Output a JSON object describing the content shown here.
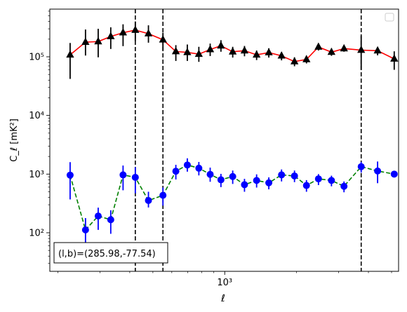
{
  "chart_data": {
    "type": "scatter",
    "xscale": "log",
    "yscale": "log",
    "xlim": [
      185,
      5350
    ],
    "ylim": [
      22,
      650000
    ],
    "xlabel": "ℓ",
    "ylabel": "C_ℓ  [mK²]",
    "xtick_major": [
      1000
    ],
    "xtick_major_labels": [
      "10³"
    ],
    "ytick_major": [
      100,
      1000,
      10000,
      100000
    ],
    "ytick_major_labels": [
      "10²",
      "10³",
      "10⁴",
      "10⁵"
    ],
    "legend": {
      "position": "top-right",
      "entries": []
    },
    "annotation": "(l,b)=(285.98,-77.54)",
    "vlines": [
      422,
      551,
      3730
    ],
    "series": [
      {
        "marker": "triangle",
        "color": "#000000",
        "line_color": "#ff0000",
        "line_style": "solid",
        "x": [
          225,
          261,
          295,
          333,
          375,
          422,
          479,
          551,
          624,
          697,
          779,
          869,
          964,
          1080,
          1210,
          1360,
          1530,
          1730,
          1960,
          2200,
          2470,
          2800,
          3160,
          3730,
          4370,
          5130
        ],
        "y": [
          108000,
          178000,
          182000,
          222000,
          258000,
          285000,
          248000,
          195000,
          123000,
          119000,
          111000,
          133000,
          154000,
          122000,
          127000,
          108000,
          118000,
          104000,
          83000,
          90000,
          147000,
          120000,
          138000,
          130000,
          127000,
          92000
        ],
        "yerr_low": [
          42000,
          105000,
          98000,
          136000,
          152000,
          185000,
          174000,
          128000,
          85000,
          85000,
          82000,
          103000,
          122000,
          97000,
          102000,
          88000,
          97000,
          87000,
          69000,
          77000,
          128000,
          104000,
          122000,
          60000,
          106000,
          60000
        ],
        "yerr_high": [
          172000,
          292000,
          300000,
          318000,
          358000,
          400000,
          344000,
          258000,
          158000,
          162000,
          148000,
          168000,
          192000,
          148000,
          153000,
          128000,
          140000,
          120000,
          98000,
          103000,
          168000,
          138000,
          154000,
          228000,
          146000,
          124000
        ]
      },
      {
        "marker": "circle",
        "color": "#0000ff",
        "line_color": "#008000",
        "line_style": "dashed",
        "x": [
          225,
          261,
          295,
          333,
          375,
          422,
          479,
          551,
          624,
          697,
          779,
          869,
          964,
          1080,
          1210,
          1360,
          1530,
          1730,
          1960,
          2200,
          2470,
          2800,
          3160,
          3730,
          4370,
          5130
        ],
        "y": [
          960,
          112,
          193,
          167,
          970,
          880,
          355,
          435,
          1120,
          1430,
          1260,
          990,
          800,
          910,
          660,
          780,
          710,
          970,
          930,
          640,
          830,
          780,
          620,
          1340,
          1130,
          1000
        ],
        "yerr_low": [
          370,
          58,
          112,
          96,
          530,
          470,
          270,
          290,
          810,
          1100,
          950,
          740,
          600,
          680,
          500,
          590,
          550,
          750,
          730,
          500,
          650,
          620,
          490,
          1060,
          700,
          1000
        ],
        "yerr_high": [
          1600,
          178,
          268,
          242,
          1400,
          1310,
          500,
          590,
          1440,
          1860,
          1610,
          1290,
          1010,
          1150,
          830,
          990,
          880,
          1200,
          1150,
          790,
          1000,
          940,
          750,
          1620,
          1640,
          1000
        ]
      }
    ]
  }
}
